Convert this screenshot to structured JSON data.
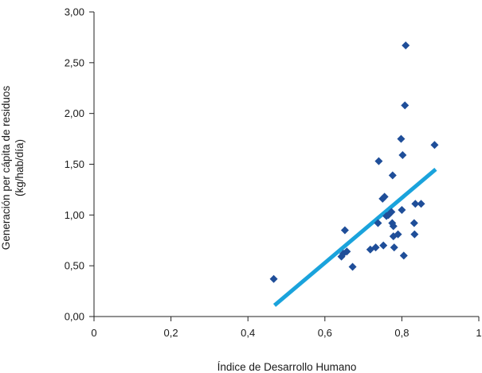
{
  "chart_data": {
    "type": "scatter",
    "title": "",
    "xlabel": "Índice de Desarrollo Humano",
    "ylabel_lines": [
      "Generación per cápita de residuos",
      "(kg/hab/día)"
    ],
    "xlim": [
      0,
      1
    ],
    "ylim": [
      0,
      3
    ],
    "x_ticks": [
      0,
      0.2,
      0.4,
      0.6,
      0.8,
      1
    ],
    "x_tick_labels": [
      "0",
      "0,2",
      "0,4",
      "0,6",
      "0,8",
      "1"
    ],
    "y_ticks": [
      0,
      0.5,
      1,
      1.5,
      2,
      2.5,
      3
    ],
    "y_tick_labels": [
      "0,00",
      "0,50",
      "1,00",
      "1,50",
      "2,00",
      "2,50",
      "3,00"
    ],
    "grid": false,
    "legend": "none",
    "series": [
      {
        "marker": "diamond",
        "color": "#1f4e99",
        "points": [
          {
            "x": 0.467,
            "y": 0.37
          },
          {
            "x": 0.643,
            "y": 0.59
          },
          {
            "x": 0.648,
            "y": 0.62
          },
          {
            "x": 0.652,
            "y": 0.85
          },
          {
            "x": 0.657,
            "y": 0.64
          },
          {
            "x": 0.672,
            "y": 0.49
          },
          {
            "x": 0.718,
            "y": 0.66
          },
          {
            "x": 0.732,
            "y": 0.68
          },
          {
            "x": 0.738,
            "y": 0.92
          },
          {
            "x": 0.74,
            "y": 1.53
          },
          {
            "x": 0.75,
            "y": 1.16
          },
          {
            "x": 0.752,
            "y": 0.7
          },
          {
            "x": 0.755,
            "y": 1.18
          },
          {
            "x": 0.76,
            "y": 0.99
          },
          {
            "x": 0.765,
            "y": 1.0
          },
          {
            "x": 0.773,
            "y": 1.03
          },
          {
            "x": 0.775,
            "y": 0.92
          },
          {
            "x": 0.776,
            "y": 1.39
          },
          {
            "x": 0.778,
            "y": 0.79
          },
          {
            "x": 0.778,
            "y": 0.89
          },
          {
            "x": 0.78,
            "y": 0.68
          },
          {
            "x": 0.79,
            "y": 0.81
          },
          {
            "x": 0.798,
            "y": 1.75
          },
          {
            "x": 0.8,
            "y": 1.05
          },
          {
            "x": 0.802,
            "y": 1.59
          },
          {
            "x": 0.805,
            "y": 0.6
          },
          {
            "x": 0.808,
            "y": 2.08
          },
          {
            "x": 0.81,
            "y": 2.67
          },
          {
            "x": 0.832,
            "y": 0.92
          },
          {
            "x": 0.833,
            "y": 0.81
          },
          {
            "x": 0.835,
            "y": 1.11
          },
          {
            "x": 0.85,
            "y": 1.11
          },
          {
            "x": 0.885,
            "y": 1.69
          }
        ]
      }
    ],
    "trendline": {
      "type": "linear",
      "color": "#1aa3dc",
      "x": [
        0.469,
        0.888
      ],
      "y": [
        0.11,
        1.45
      ]
    }
  }
}
